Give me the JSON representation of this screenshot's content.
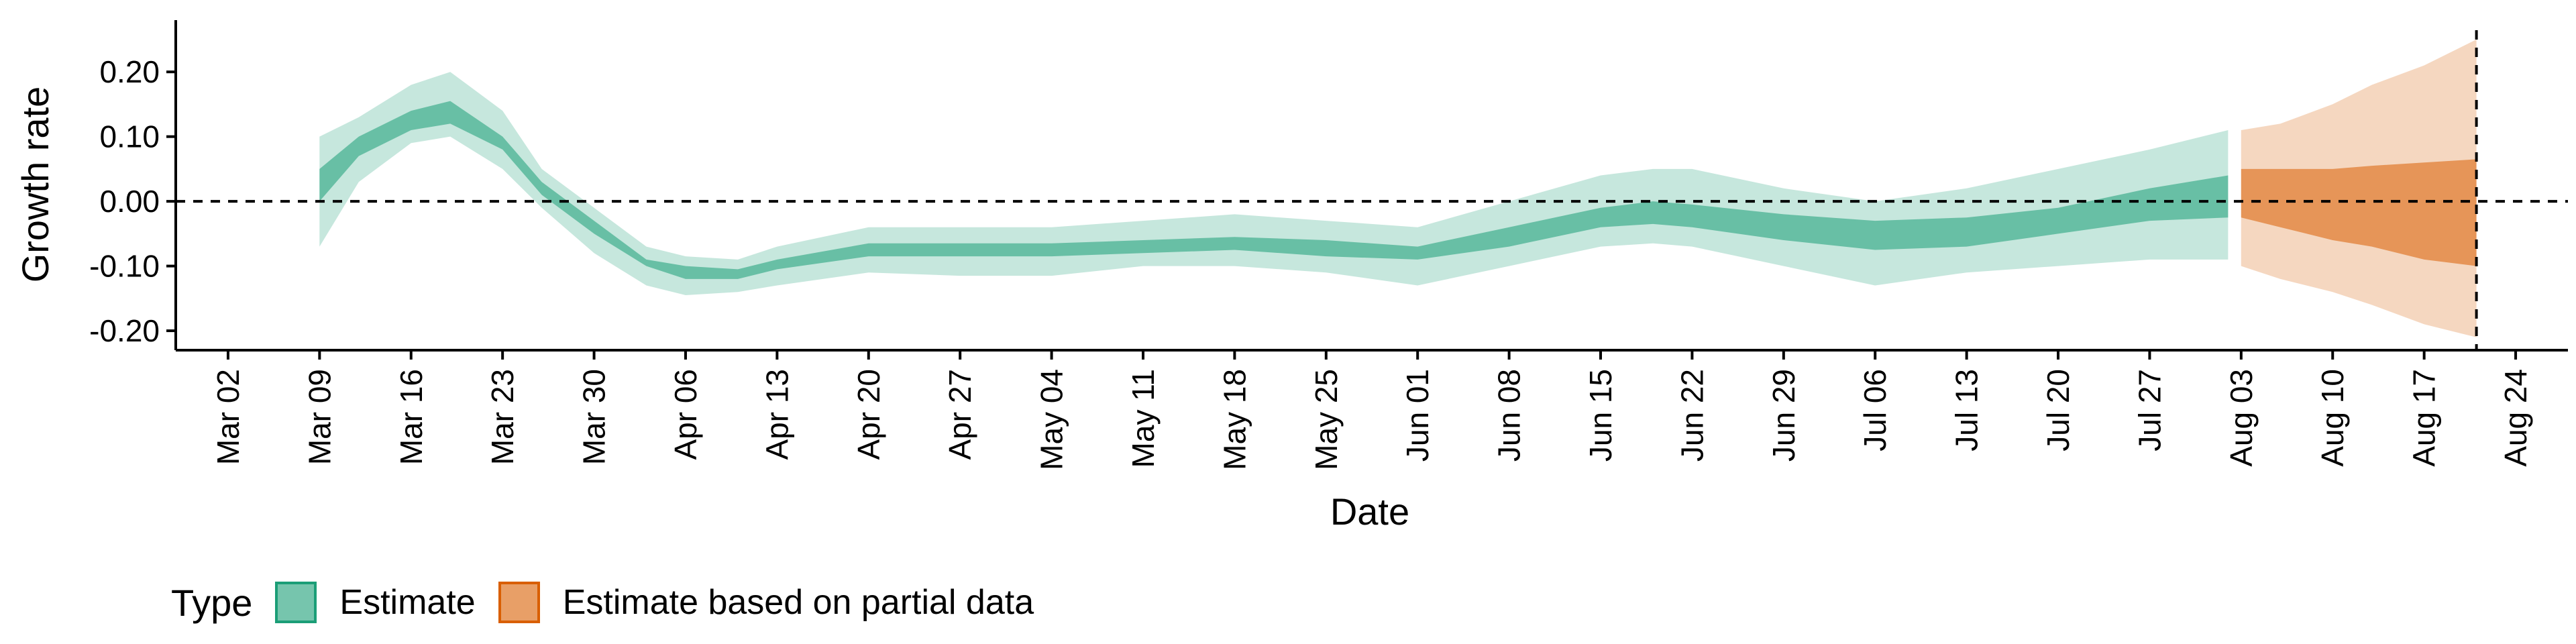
{
  "chart_data": {
    "type": "area",
    "xlabel": "Date",
    "ylabel": "Growth rate",
    "xlim": [
      "2020-02-27",
      "2020-08-28"
    ],
    "ylim": [
      -0.23,
      0.28
    ],
    "y_ticks": [
      -0.2,
      -0.1,
      0.0,
      0.1,
      0.2
    ],
    "y_tick_labels": [
      "-0.20",
      "-0.10",
      "0.00",
      "0.10",
      "0.20"
    ],
    "x_ticks": [
      "2020-03-02",
      "2020-03-09",
      "2020-03-16",
      "2020-03-23",
      "2020-03-30",
      "2020-04-06",
      "2020-04-13",
      "2020-04-20",
      "2020-04-27",
      "2020-05-04",
      "2020-05-11",
      "2020-05-18",
      "2020-05-25",
      "2020-06-01",
      "2020-06-08",
      "2020-06-15",
      "2020-06-22",
      "2020-06-29",
      "2020-07-06",
      "2020-07-13",
      "2020-07-20",
      "2020-07-27",
      "2020-08-03",
      "2020-08-10",
      "2020-08-17",
      "2020-08-24"
    ],
    "x_tick_labels": [
      "Mar 02",
      "Mar 09",
      "Mar 16",
      "Mar 23",
      "Mar 30",
      "Apr 06",
      "Apr 13",
      "Apr 20",
      "Apr 27",
      "May 04",
      "May 11",
      "May 18",
      "May 25",
      "Jun 01",
      "Jun 08",
      "Jun 15",
      "Jun 22",
      "Jun 29",
      "Jul 06",
      "Jul 13",
      "Jul 20",
      "Jul 27",
      "Aug 03",
      "Aug 10",
      "Aug 17",
      "Aug 24"
    ],
    "reference_lines": {
      "horizontal_y": 0.0,
      "vertical_x": "2020-08-21"
    },
    "grid": false,
    "legend": {
      "title": "Type",
      "position": "bottom-left"
    },
    "series": [
      {
        "name": "Estimate",
        "color": "#1b9e77",
        "points": [
          {
            "x": "2020-03-09",
            "lo90": -0.07,
            "lo50": 0.0,
            "hi50": 0.05,
            "hi90": 0.1
          },
          {
            "x": "2020-03-12",
            "lo90": 0.03,
            "lo50": 0.07,
            "hi50": 0.1,
            "hi90": 0.13
          },
          {
            "x": "2020-03-16",
            "lo90": 0.09,
            "lo50": 0.11,
            "hi50": 0.14,
            "hi90": 0.18
          },
          {
            "x": "2020-03-19",
            "lo90": 0.1,
            "lo50": 0.12,
            "hi50": 0.155,
            "hi90": 0.2
          },
          {
            "x": "2020-03-23",
            "lo90": 0.05,
            "lo50": 0.08,
            "hi50": 0.1,
            "hi90": 0.14
          },
          {
            "x": "2020-03-26",
            "lo90": -0.01,
            "lo50": 0.01,
            "hi50": 0.03,
            "hi90": 0.05
          },
          {
            "x": "2020-03-30",
            "lo90": -0.08,
            "lo50": -0.05,
            "hi50": -0.03,
            "hi90": -0.01
          },
          {
            "x": "2020-04-03",
            "lo90": -0.13,
            "lo50": -0.1,
            "hi50": -0.09,
            "hi90": -0.07
          },
          {
            "x": "2020-04-06",
            "lo90": -0.145,
            "lo50": -0.12,
            "hi50": -0.1,
            "hi90": -0.085
          },
          {
            "x": "2020-04-10",
            "lo90": -0.14,
            "lo50": -0.12,
            "hi50": -0.105,
            "hi90": -0.09
          },
          {
            "x": "2020-04-13",
            "lo90": -0.13,
            "lo50": -0.105,
            "hi50": -0.09,
            "hi90": -0.07
          },
          {
            "x": "2020-04-20",
            "lo90": -0.11,
            "lo50": -0.085,
            "hi50": -0.065,
            "hi90": -0.04
          },
          {
            "x": "2020-04-27",
            "lo90": -0.115,
            "lo50": -0.085,
            "hi50": -0.065,
            "hi90": -0.04
          },
          {
            "x": "2020-05-04",
            "lo90": -0.115,
            "lo50": -0.085,
            "hi50": -0.065,
            "hi90": -0.04
          },
          {
            "x": "2020-05-11",
            "lo90": -0.1,
            "lo50": -0.08,
            "hi50": -0.06,
            "hi90": -0.03
          },
          {
            "x": "2020-05-18",
            "lo90": -0.1,
            "lo50": -0.075,
            "hi50": -0.055,
            "hi90": -0.02
          },
          {
            "x": "2020-05-25",
            "lo90": -0.11,
            "lo50": -0.085,
            "hi50": -0.06,
            "hi90": -0.03
          },
          {
            "x": "2020-06-01",
            "lo90": -0.13,
            "lo50": -0.09,
            "hi50": -0.07,
            "hi90": -0.04
          },
          {
            "x": "2020-06-08",
            "lo90": -0.1,
            "lo50": -0.07,
            "hi50": -0.04,
            "hi90": 0.0
          },
          {
            "x": "2020-06-15",
            "lo90": -0.07,
            "lo50": -0.04,
            "hi50": -0.01,
            "hi90": 0.04
          },
          {
            "x": "2020-06-19",
            "lo90": -0.065,
            "lo50": -0.035,
            "hi50": 0.0,
            "hi90": 0.05
          },
          {
            "x": "2020-06-22",
            "lo90": -0.07,
            "lo50": -0.04,
            "hi50": -0.005,
            "hi90": 0.05
          },
          {
            "x": "2020-06-29",
            "lo90": -0.1,
            "lo50": -0.06,
            "hi50": -0.02,
            "hi90": 0.02
          },
          {
            "x": "2020-07-06",
            "lo90": -0.13,
            "lo50": -0.075,
            "hi50": -0.03,
            "hi90": 0.0
          },
          {
            "x": "2020-07-13",
            "lo90": -0.11,
            "lo50": -0.07,
            "hi50": -0.025,
            "hi90": 0.02
          },
          {
            "x": "2020-07-20",
            "lo90": -0.1,
            "lo50": -0.05,
            "hi50": -0.01,
            "hi90": 0.05
          },
          {
            "x": "2020-07-27",
            "lo90": -0.09,
            "lo50": -0.03,
            "hi50": 0.02,
            "hi90": 0.08
          },
          {
            "x": "2020-08-02",
            "lo90": -0.09,
            "lo50": -0.025,
            "hi50": 0.04,
            "hi90": 0.11
          }
        ]
      },
      {
        "name": "Estimate based on partial data",
        "color": "#d95f02",
        "points": [
          {
            "x": "2020-08-03",
            "lo90": -0.1,
            "lo50": -0.025,
            "hi50": 0.05,
            "hi90": 0.11
          },
          {
            "x": "2020-08-06",
            "lo90": -0.12,
            "lo50": -0.04,
            "hi50": 0.05,
            "hi90": 0.12
          },
          {
            "x": "2020-08-10",
            "lo90": -0.14,
            "lo50": -0.06,
            "hi50": 0.05,
            "hi90": 0.15
          },
          {
            "x": "2020-08-13",
            "lo90": -0.16,
            "lo50": -0.07,
            "hi50": 0.055,
            "hi90": 0.18
          },
          {
            "x": "2020-08-17",
            "lo90": -0.19,
            "lo50": -0.09,
            "hi50": 0.06,
            "hi90": 0.21
          },
          {
            "x": "2020-08-21",
            "lo90": -0.21,
            "lo50": -0.1,
            "hi50": 0.065,
            "hi90": 0.25
          }
        ]
      }
    ]
  }
}
